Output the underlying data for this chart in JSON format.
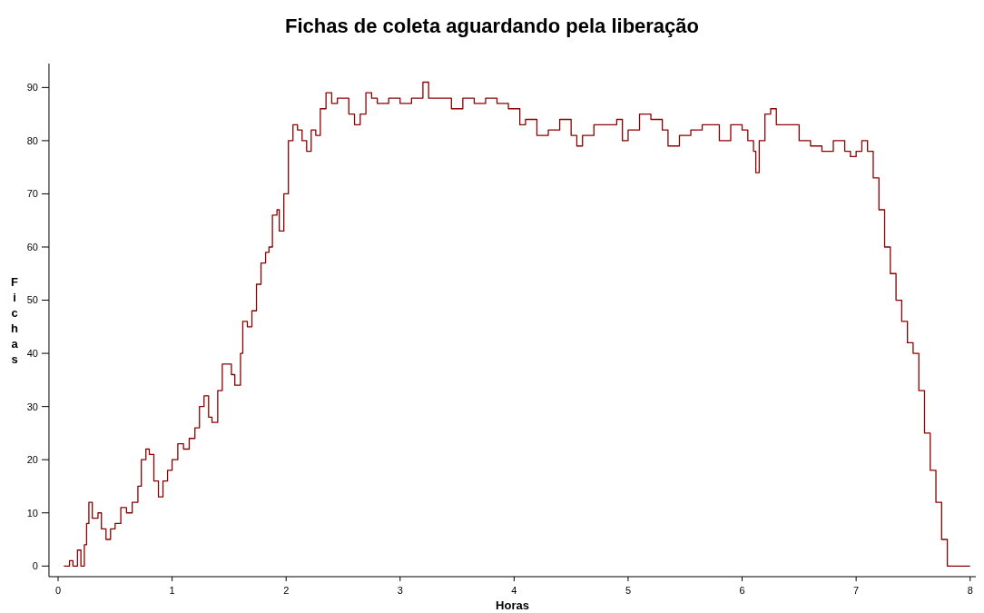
{
  "chart_data": {
    "type": "step",
    "title": "Fichas de coleta aguardando pela liberação",
    "xlabel": "Horas",
    "ylabel": "Fichas",
    "xlim": [
      -0.08,
      8.05
    ],
    "xticks": [
      0,
      1,
      2,
      3,
      4,
      5,
      6,
      7,
      8
    ],
    "ylim": [
      -2,
      94.5
    ],
    "yticks": [
      0,
      10,
      20,
      30,
      40,
      50,
      60,
      70,
      80,
      90
    ],
    "series": [
      {
        "color": "#8b0000",
        "x": [
          0.05,
          0.1,
          0.13,
          0.17,
          0.2,
          0.23,
          0.25,
          0.27,
          0.3,
          0.35,
          0.38,
          0.42,
          0.46,
          0.5,
          0.55,
          0.6,
          0.65,
          0.7,
          0.73,
          0.77,
          0.8,
          0.84,
          0.88,
          0.92,
          0.96,
          1.0,
          1.05,
          1.1,
          1.15,
          1.2,
          1.24,
          1.28,
          1.32,
          1.35,
          1.4,
          1.44,
          1.48,
          1.52,
          1.55,
          1.6,
          1.62,
          1.66,
          1.7,
          1.74,
          1.78,
          1.82,
          1.85,
          1.88,
          1.92,
          1.94,
          1.98,
          2.02,
          2.06,
          2.1,
          2.14,
          2.18,
          2.22,
          2.26,
          2.3,
          2.35,
          2.4,
          2.45,
          2.5,
          2.55,
          2.6,
          2.65,
          2.7,
          2.75,
          2.8,
          2.9,
          3.0,
          3.1,
          3.2,
          3.25,
          3.35,
          3.45,
          3.55,
          3.65,
          3.75,
          3.85,
          3.95,
          4.0,
          4.05,
          4.1,
          4.2,
          4.3,
          4.4,
          4.5,
          4.55,
          4.6,
          4.7,
          4.8,
          4.9,
          4.95,
          5.0,
          5.1,
          5.2,
          5.3,
          5.35,
          5.45,
          5.55,
          5.65,
          5.75,
          5.8,
          5.9,
          6.0,
          6.05,
          6.1,
          6.12,
          6.15,
          6.2,
          6.25,
          6.3,
          6.4,
          6.5,
          6.6,
          6.7,
          6.8,
          6.9,
          6.95,
          7.0,
          7.05,
          7.1,
          7.15,
          7.2,
          7.25,
          7.3,
          7.35,
          7.4,
          7.45,
          7.5,
          7.55,
          7.6,
          7.65,
          7.7,
          7.75,
          7.8,
          8.0
        ],
        "values": [
          0,
          1,
          0,
          3,
          0,
          4,
          8,
          12,
          9,
          10,
          7,
          5,
          7,
          8,
          11,
          10,
          12,
          15,
          20,
          22,
          21,
          16,
          13,
          16,
          18,
          20,
          23,
          22,
          24,
          26,
          30,
          32,
          28,
          27,
          33,
          38,
          38,
          36,
          34,
          40,
          46,
          45,
          48,
          53,
          57,
          59,
          60,
          66,
          67,
          63,
          70,
          80,
          83,
          82,
          80,
          78,
          82,
          81,
          86,
          89,
          87,
          88,
          88,
          85,
          83,
          85,
          89,
          88,
          87,
          88,
          87,
          88,
          91,
          88,
          88,
          86,
          88,
          87,
          88,
          87,
          86,
          86,
          83,
          84,
          81,
          82,
          84,
          81,
          79,
          81,
          83,
          83,
          84,
          80,
          82,
          85,
          84,
          82,
          79,
          81,
          82,
          83,
          83,
          80,
          83,
          82,
          80,
          78,
          74,
          80,
          85,
          86,
          83,
          83,
          80,
          79,
          78,
          80,
          78,
          77,
          78,
          80,
          78,
          73,
          67,
          60,
          55,
          50,
          46,
          42,
          40,
          33,
          25,
          18,
          12,
          5,
          0,
          0
        ]
      }
    ]
  }
}
